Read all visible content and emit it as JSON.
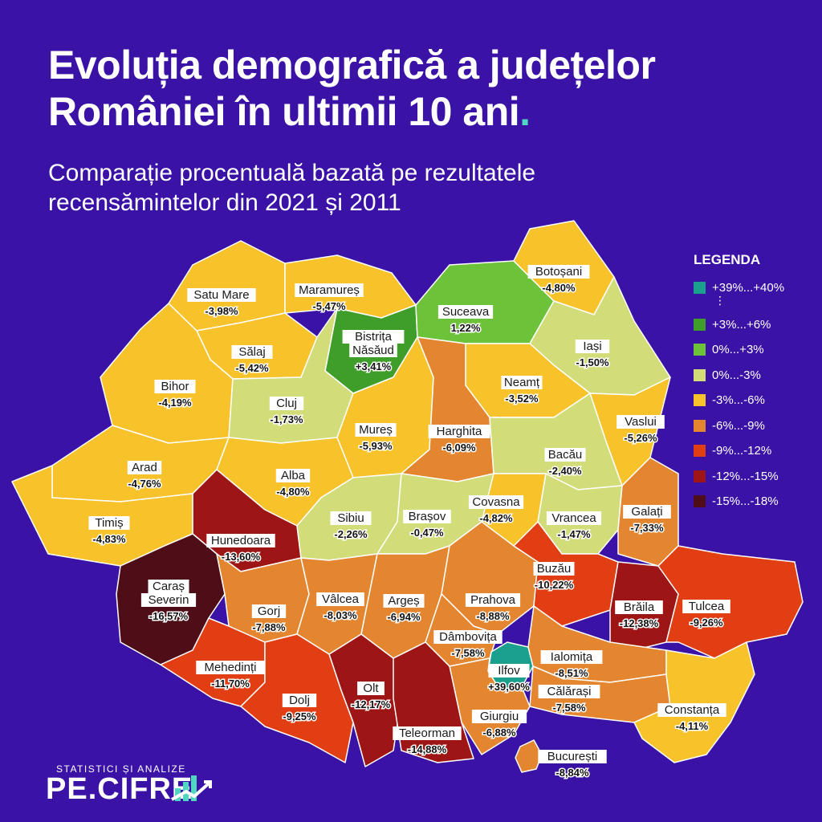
{
  "header": {
    "title_line1": "Evoluția demografică a județelor",
    "title_line2": "României în ultimii 10 ani",
    "title_dot": ".",
    "subtitle_line1": "Comparație procentuală bazată pe rezultatele",
    "subtitle_line2": "recensămintelor din 2021 și 2011"
  },
  "legend": {
    "title": "LEGENDA",
    "ellipsis": "⋮",
    "items": [
      {
        "label": "+39%...+40%",
        "color": "#1aa08c"
      },
      {
        "label": "+3%...+6%",
        "color": "#3f9e2a"
      },
      {
        "label": "0%...+3%",
        "color": "#6cc33a"
      },
      {
        "label": "0%...-3%",
        "color": "#d2dd7a"
      },
      {
        "label": "-3%...-6%",
        "color": "#f8c22a"
      },
      {
        "label": "-6%...-9%",
        "color": "#e3862f"
      },
      {
        "label": "-9%...-12%",
        "color": "#e23e14"
      },
      {
        "label": "-12%...-15%",
        "color": "#9e1515"
      },
      {
        "label": "-15%...-18%",
        "color": "#4f0d17"
      }
    ]
  },
  "counties": [
    {
      "name": "Satu Mare",
      "value": "-3,98%",
      "color": "#f8c22a"
    },
    {
      "name": "Maramureș",
      "value": "-5,47%",
      "color": "#f8c22a"
    },
    {
      "name": "Bistrița Năsăud",
      "value": "+3,41%",
      "color": "#3f9e2a"
    },
    {
      "name": "Suceava",
      "value": "1,22%",
      "color": "#6cc33a"
    },
    {
      "name": "Botoșani",
      "value": "-4,80%",
      "color": "#f8c22a"
    },
    {
      "name": "Sălaj",
      "value": "-5,42%",
      "color": "#f8c22a"
    },
    {
      "name": "Bihor",
      "value": "-4,19%",
      "color": "#f8c22a"
    },
    {
      "name": "Cluj",
      "value": "-1,73%",
      "color": "#d2dd7a"
    },
    {
      "name": "Iași",
      "value": "-1,50%",
      "color": "#d2dd7a"
    },
    {
      "name": "Neamț",
      "value": "-3,52%",
      "color": "#f8c22a"
    },
    {
      "name": "Mureș",
      "value": "-5,93%",
      "color": "#f8c22a"
    },
    {
      "name": "Harghita",
      "value": "-6,09%",
      "color": "#e3862f"
    },
    {
      "name": "Vaslui",
      "value": "-5,26%",
      "color": "#f8c22a"
    },
    {
      "name": "Bacău",
      "value": "-2,40%",
      "color": "#d2dd7a"
    },
    {
      "name": "Arad",
      "value": "-4,76%",
      "color": "#f8c22a"
    },
    {
      "name": "Alba",
      "value": "-4,80%",
      "color": "#f8c22a"
    },
    {
      "name": "Hunedoara",
      "value": "-13,60%",
      "color": "#9e1515"
    },
    {
      "name": "Timiș",
      "value": "-4,83%",
      "color": "#f8c22a"
    },
    {
      "name": "Sibiu",
      "value": "-2,26%",
      "color": "#d2dd7a"
    },
    {
      "name": "Brașov",
      "value": "-0,47%",
      "color": "#d2dd7a"
    },
    {
      "name": "Covasna",
      "value": "-4,82%",
      "color": "#f8c22a"
    },
    {
      "name": "Vrancea",
      "value": "-1,47%",
      "color": "#d2dd7a"
    },
    {
      "name": "Galați",
      "value": "-7,33%",
      "color": "#e3862f"
    },
    {
      "name": "Caraș Severin",
      "value": "-16,57%",
      "color": "#4f0d17"
    },
    {
      "name": "Gorj",
      "value": "-7,88%",
      "color": "#e3862f"
    },
    {
      "name": "Vâlcea",
      "value": "-8,03%",
      "color": "#e3862f"
    },
    {
      "name": "Argeș",
      "value": "-6,94%",
      "color": "#e3862f"
    },
    {
      "name": "Prahova",
      "value": "-8,88%",
      "color": "#e3862f"
    },
    {
      "name": "Buzău",
      "value": "-10,22%",
      "color": "#e23e14"
    },
    {
      "name": "Brăila",
      "value": "-12,38%",
      "color": "#9e1515"
    },
    {
      "name": "Tulcea",
      "value": "-9,26%",
      "color": "#e23e14"
    },
    {
      "name": "Dâmbovița",
      "value": "-7,58%",
      "color": "#e3862f"
    },
    {
      "name": "Ilfov",
      "value": "+39,60%",
      "color": "#1aa08c"
    },
    {
      "name": "Ialomița",
      "value": "-8,51%",
      "color": "#e3862f"
    },
    {
      "name": "Mehedinți",
      "value": "-11,70%",
      "color": "#e23e14"
    },
    {
      "name": "Olt",
      "value": "-12,17%",
      "color": "#9e1515"
    },
    {
      "name": "Călărași",
      "value": "-7,58%",
      "color": "#e3862f"
    },
    {
      "name": "Dolj",
      "value": "-9,25%",
      "color": "#e23e14"
    },
    {
      "name": "Giurgiu",
      "value": "-6,88%",
      "color": "#e3862f"
    },
    {
      "name": "Constanța",
      "value": "-4,11%",
      "color": "#f8c22a"
    },
    {
      "name": "Teleorman",
      "value": "-14,88%",
      "color": "#9e1515"
    },
    {
      "name": "București",
      "value": "-8,84%",
      "color": "#e3862f"
    }
  ],
  "logo": {
    "tagline": "STATISTICI ȘI ANALIZE",
    "brand": "PE.CIFRE",
    "icon": "chart-bars-icon"
  }
}
